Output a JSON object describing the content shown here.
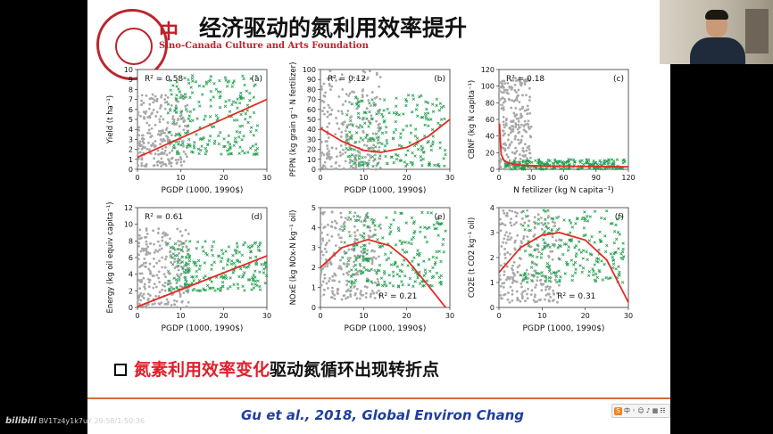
{
  "slide": {
    "org_name_cn": "中",
    "org_name_en": "Sino-Canada Culture and Arts Foundation",
    "title": "经济驱动的氮利用效率提升",
    "bullet": {
      "highlight": "氮素利用效率变化",
      "rest": "驱动氮循环出现转折点"
    },
    "citation": "Gu et al., 2018, Global Environ Chang"
  },
  "watermark": {
    "brand": "bilibili",
    "text": "BV1Tz4y1k7uY 29:58/1:50:36"
  },
  "ime_toolbar": {
    "label": "中",
    "icon": "sogou-ime-icon"
  },
  "colors": {
    "scatter_gray": "#a9a9a9",
    "scatter_green": "#1f9e4c",
    "fit_red": "#e32b22",
    "title_red": "#c21f2a",
    "citation_blue": "#1f3f9e"
  },
  "chart_data": [
    {
      "type": "scatter",
      "panel": "(a)",
      "r2": "R² = 0.58",
      "xlabel": "PGDP (1000, 1990$)",
      "ylabel": "Yield (t ha⁻¹)",
      "xlim": [
        0,
        30
      ],
      "ylim": [
        0,
        10
      ],
      "xticks": [
        "0",
        "10",
        "20",
        "30"
      ],
      "yticks": [
        "0",
        "1",
        "2",
        "3",
        "4",
        "5",
        "6",
        "7",
        "8",
        "9",
        "10"
      ],
      "fit": {
        "shape": "linear",
        "x": [
          0,
          30
        ],
        "y": [
          1.2,
          7.0
        ]
      },
      "series": [
        {
          "color": "gray",
          "x_range": [
            0,
            12
          ],
          "y_range": [
            0.3,
            7.5
          ]
        },
        {
          "color": "green",
          "x_range": [
            7,
            28
          ],
          "y_range": [
            1.5,
            9.5
          ]
        }
      ]
    },
    {
      "type": "scatter",
      "panel": "(b)",
      "r2": "R² = 0.12",
      "xlabel": "PGDP (1000, 1990$)",
      "ylabel": "PFPN (kg grain g⁻¹ N fertilizer)",
      "xlim": [
        0,
        30
      ],
      "ylim": [
        0,
        100
      ],
      "xticks": [
        "0",
        "10",
        "20",
        "30"
      ],
      "yticks": [
        "0",
        "10",
        "20",
        "30",
        "40",
        "50",
        "60",
        "70",
        "80",
        "90",
        "100"
      ],
      "fit": {
        "shape": "quadratic",
        "x": [
          0,
          5,
          10,
          14,
          20,
          25,
          30
        ],
        "y": [
          41,
          28,
          19,
          17,
          22,
          33,
          50
        ]
      },
      "series": [
        {
          "color": "gray",
          "x_range": [
            0,
            14
          ],
          "y_range": [
            0,
            100
          ]
        },
        {
          "color": "green",
          "x_range": [
            6,
            29
          ],
          "y_range": [
            3,
            75
          ]
        }
      ]
    },
    {
      "type": "scatter",
      "panel": "(c)",
      "r2": "R² = 0.18",
      "xlabel": "N fetilizer (kg N capita⁻¹)",
      "ylabel": "CBNF (kg N capita⁻¹)",
      "xlim": [
        0,
        120
      ],
      "ylim": [
        0,
        120
      ],
      "xticks": [
        "0",
        "30",
        "60",
        "90",
        "120"
      ],
      "yticks": [
        "0",
        "20",
        "40",
        "60",
        "80",
        "100",
        "120"
      ],
      "fit": {
        "shape": "decay",
        "x": [
          0.5,
          2,
          5,
          10,
          20,
          40,
          120
        ],
        "y": [
          55,
          18,
          10,
          7,
          5,
          4,
          3
        ]
      },
      "series": [
        {
          "color": "gray",
          "x_range": [
            0,
            30
          ],
          "y_range": [
            0,
            110
          ]
        },
        {
          "color": "green",
          "x_range": [
            5,
            118
          ],
          "y_range": [
            0,
            12
          ]
        }
      ]
    },
    {
      "type": "scatter",
      "panel": "(d)",
      "r2": "R² = 0.61",
      "xlabel": "PGDP (1000, 1990$)",
      "ylabel": "Energy (kg oil equiv capita⁻¹)",
      "xlim": [
        0,
        30
      ],
      "ylim": [
        0,
        12
      ],
      "xticks": [
        "0",
        "10",
        "20",
        "30"
      ],
      "yticks": [
        "0",
        "2",
        "4",
        "6",
        "8",
        "10",
        "12"
      ],
      "fit": {
        "shape": "linear",
        "x": [
          0,
          30
        ],
        "y": [
          0.1,
          6.2
        ]
      },
      "series": [
        {
          "color": "gray",
          "x_range": [
            0,
            12
          ],
          "y_range": [
            0,
            9.5
          ]
        },
        {
          "color": "green",
          "x_range": [
            7,
            30
          ],
          "y_range": [
            2,
            8
          ]
        }
      ]
    },
    {
      "type": "scatter",
      "panel": "(e)",
      "r2": "R² = 0.21",
      "xlabel": "PGDP (1000, 1990$)",
      "ylabel": "NOxE (kg NOx-N kg⁻¹ oil)",
      "xlim": [
        0,
        30
      ],
      "ylim": [
        0,
        5
      ],
      "xticks": [
        "0",
        "10",
        "20",
        "30"
      ],
      "yticks": [
        "0",
        "1",
        "2",
        "3",
        "4",
        "5"
      ],
      "fit": {
        "shape": "quadratic",
        "x": [
          0,
          5,
          11,
          16,
          20,
          25,
          29
        ],
        "y": [
          2.0,
          3.0,
          3.4,
          3.1,
          2.4,
          1.1,
          0
        ]
      },
      "series": [
        {
          "color": "gray",
          "x_range": [
            0,
            14
          ],
          "y_range": [
            0.4,
            4.8
          ]
        },
        {
          "color": "green",
          "x_range": [
            5,
            29
          ],
          "y_range": [
            1,
            4.8
          ]
        }
      ]
    },
    {
      "type": "scatter",
      "panel": "(f)",
      "r2": "R² = 0.31",
      "xlabel": "PGDP (1000, 1990$)",
      "ylabel": "CO2E (t CO2 kg⁻¹ oil)",
      "xlim": [
        0,
        30
      ],
      "ylim": [
        0,
        4
      ],
      "xticks": [
        "0",
        "10",
        "20",
        "30"
      ],
      "yticks": [
        "0",
        "1",
        "2",
        "3",
        "4"
      ],
      "fit": {
        "shape": "quadratic",
        "x": [
          0,
          5,
          10,
          14,
          20,
          25,
          30
        ],
        "y": [
          1.4,
          2.4,
          2.9,
          3.0,
          2.7,
          1.9,
          0.2
        ]
      },
      "series": [
        {
          "color": "gray",
          "x_range": [
            0,
            14
          ],
          "y_range": [
            0.2,
            3.9
          ]
        },
        {
          "color": "green",
          "x_range": [
            5,
            29
          ],
          "y_range": [
            1,
            3.9
          ]
        }
      ]
    }
  ]
}
